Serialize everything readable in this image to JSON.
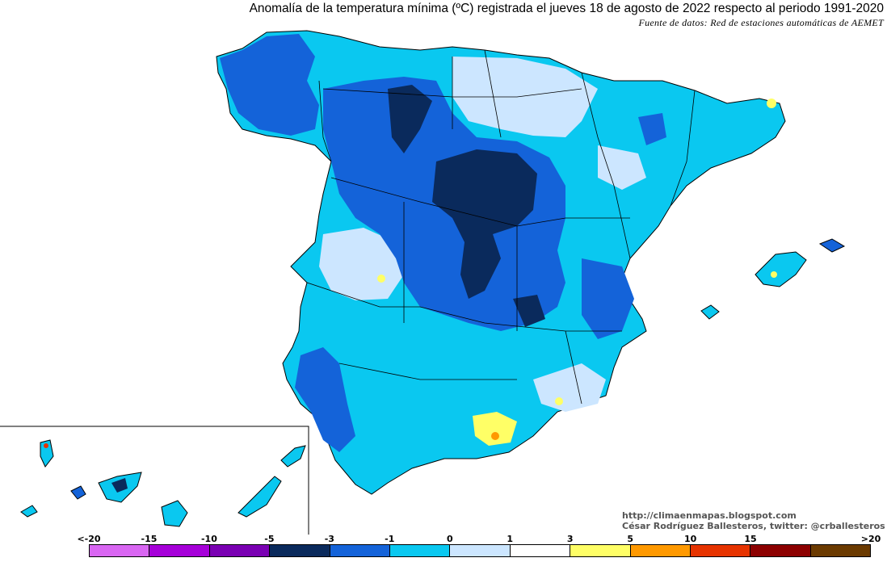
{
  "title": "Anomalía de la temperatura mínima (ºC) registrada el jueves 18 de agosto de 2022 respecto al periodo 1991-2020",
  "source": "Fuente de datos: Red de estaciones automáticas de AEMET",
  "credits": {
    "blog": "http://climaenmapas.blogspot.com",
    "author": "César Rodríguez Ballesteros, twitter: @crballesteros"
  },
  "legend": {
    "labels": [
      "<-20",
      "-15",
      "-10",
      "-5",
      "-3",
      "-1",
      "0",
      "1",
      "3",
      "5",
      "10",
      "15",
      ">20"
    ],
    "colors": [
      "#d966f2",
      "#a600d9",
      "#7a00b3",
      "#0a2a5c",
      "#1463d9",
      "#0ac8f0",
      "#cce6ff",
      "#ffffff",
      "#ffff66",
      "#ff9900",
      "#e63300",
      "#8c0000",
      "#6b3a00"
    ]
  },
  "map": {
    "region": "Península Ibérica, Baleares y Canarias",
    "colors": {
      "very_cold": "#0a2a5c",
      "cold": "#1463d9",
      "cool": "#0ac8f0",
      "slight": "#cce6ff",
      "neutral": "#ffffff",
      "warm": "#ffff66",
      "hot": "#ff9900",
      "border": "#000000"
    }
  }
}
